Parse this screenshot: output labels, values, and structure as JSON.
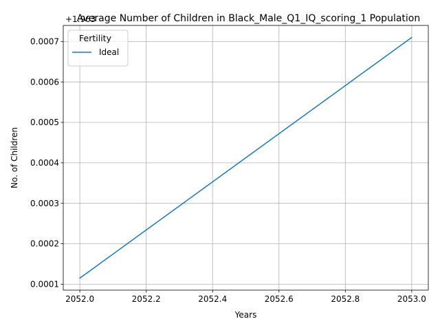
{
  "chart_data": {
    "type": "line",
    "title": "Average Number of Children in Black_Male_Q1_IQ_scoring_1 Population",
    "xlabel": "Years",
    "ylabel": "No. of Children",
    "offset_text": "+1.963",
    "x": [
      2052.0,
      2053.0
    ],
    "series": [
      {
        "name": "Ideal",
        "x": [
          2052.0,
          2053.0
        ],
        "values": [
          0.000115,
          0.00071
        ],
        "color": "#1f77b4"
      }
    ],
    "xlim": [
      2051.95,
      2053.05
    ],
    "ylim": [
      8.53e-05,
      0.0007397
    ],
    "x_ticks": [
      "2052.0",
      "2052.2",
      "2052.4",
      "2052.6",
      "2052.8",
      "2053.0"
    ],
    "x_tick_values": [
      2052.0,
      2052.2,
      2052.4,
      2052.6,
      2052.8,
      2053.0
    ],
    "y_ticks": [
      "0.0001",
      "0.0002",
      "0.0003",
      "0.0004",
      "0.0005",
      "0.0006",
      "0.0007"
    ],
    "y_tick_values": [
      0.0001,
      0.0002,
      0.0003,
      0.0004,
      0.0005,
      0.0006,
      0.0007
    ],
    "grid": true,
    "legend": {
      "title": "Fertility",
      "placement": "top-left"
    }
  }
}
